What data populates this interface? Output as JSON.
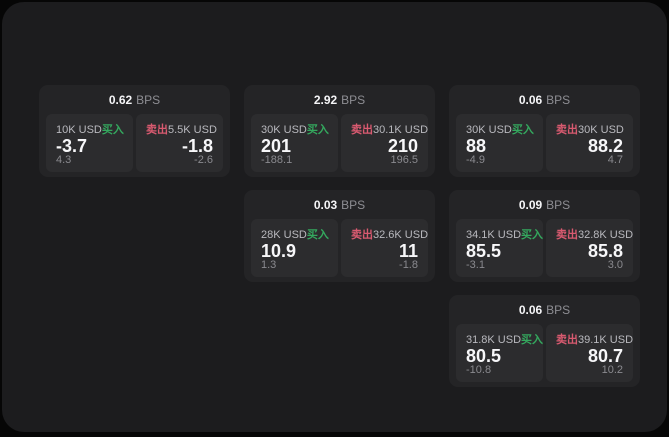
{
  "labels": {
    "bps_unit": "BPS",
    "buy": "买入",
    "sell": "卖出"
  },
  "colors": {
    "buy_green": "#34a85e",
    "sell_red": "#d95a70",
    "panel_background": "#1c1c1e",
    "card_background": "#242426",
    "tile_background": "#2c2c2e"
  },
  "cards": [
    {
      "bps": "0.62",
      "buy": {
        "amount": "10K USD",
        "price": "-3.7",
        "sub": "4.3"
      },
      "sell": {
        "amount": "5.5K USD",
        "price": "-1.8",
        "sub": "-2.6"
      }
    },
    {
      "bps": "2.92",
      "buy": {
        "amount": "30K USD",
        "price": "201",
        "sub": "-188.1"
      },
      "sell": {
        "amount": "30.1K USD",
        "price": "210",
        "sub": "196.5"
      }
    },
    {
      "bps": "0.06",
      "buy": {
        "amount": "30K USD",
        "price": "88",
        "sub": "-4.9"
      },
      "sell": {
        "amount": "30K USD",
        "price": "88.2",
        "sub": "4.7"
      }
    },
    {
      "bps": "0.03",
      "buy": {
        "amount": "28K USD",
        "price": "10.9",
        "sub": "1.3"
      },
      "sell": {
        "amount": "32.6K USD",
        "price": "11",
        "sub": "-1.8"
      }
    },
    {
      "bps": "0.09",
      "buy": {
        "amount": "34.1K USD",
        "price": "85.5",
        "sub": "-3.1"
      },
      "sell": {
        "amount": "32.8K USD",
        "price": "85.8",
        "sub": "3.0"
      }
    },
    {
      "bps": "0.06",
      "buy": {
        "amount": "31.8K USD",
        "price": "80.5",
        "sub": "-10.8"
      },
      "sell": {
        "amount": "39.1K USD",
        "price": "80.7",
        "sub": "10.2"
      }
    }
  ]
}
